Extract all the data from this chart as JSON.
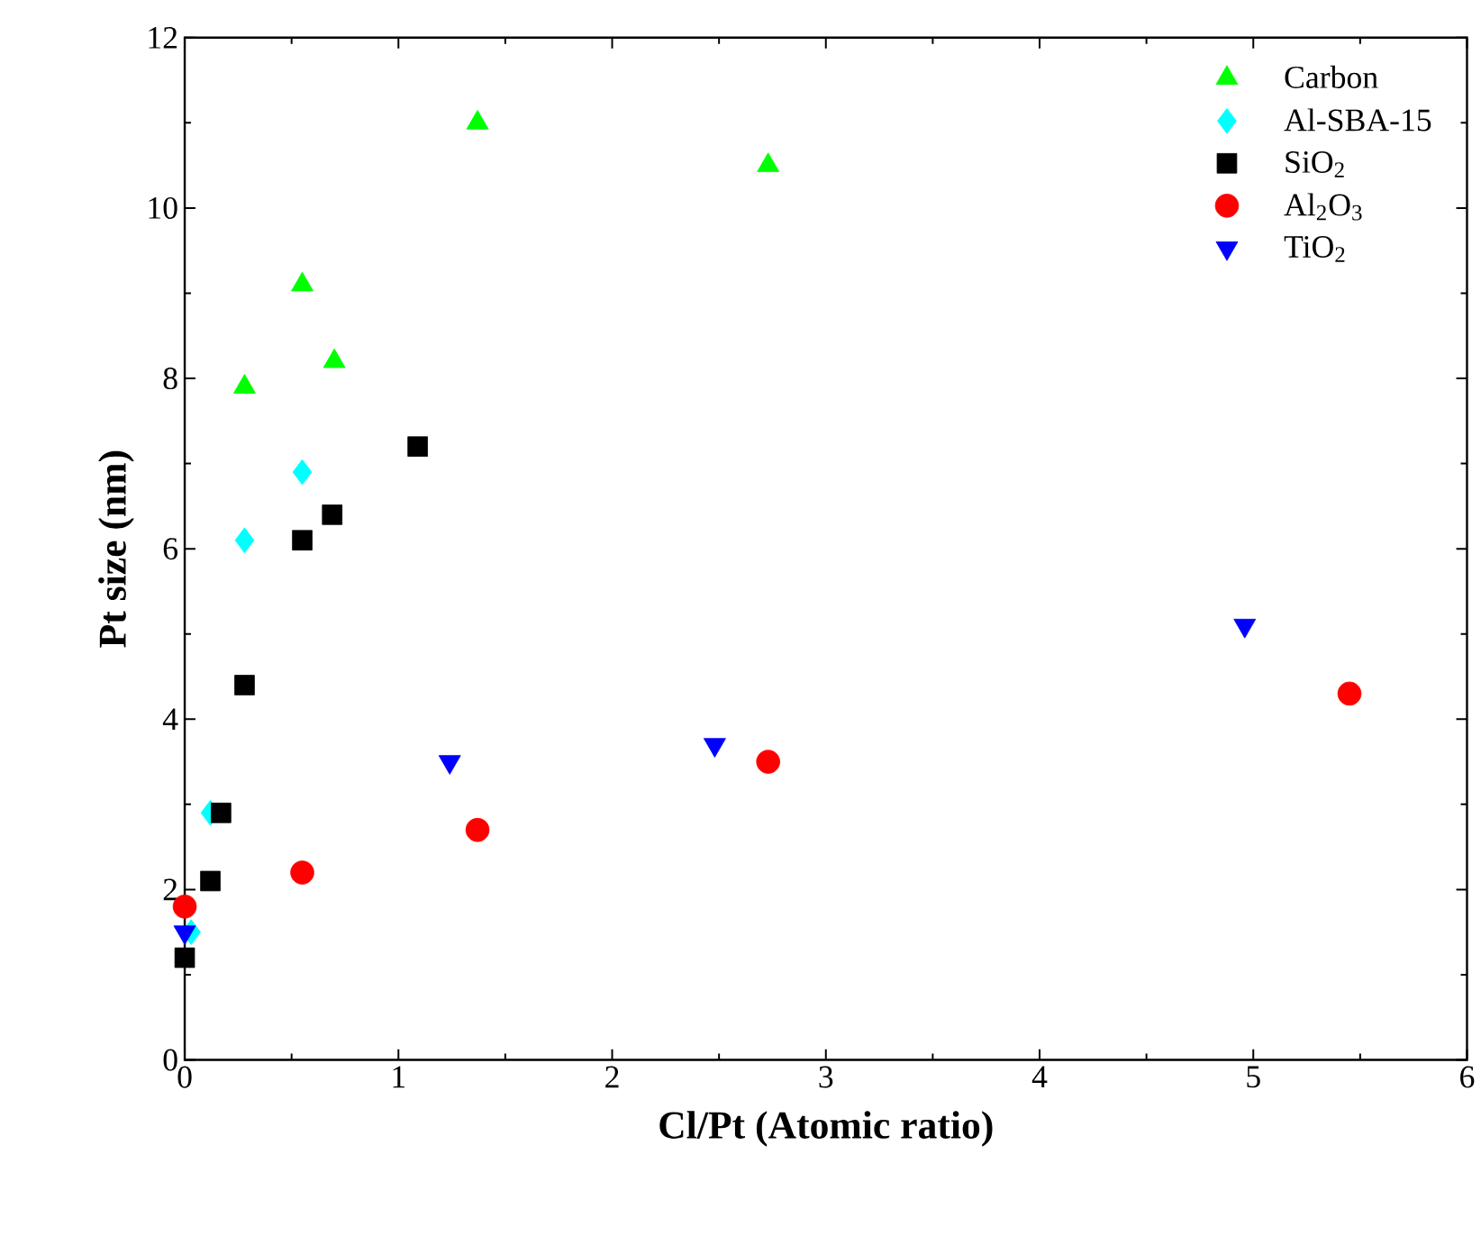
{
  "chart_data": {
    "type": "scatter",
    "xlabel": "Cl/Pt (Atomic ratio)",
    "ylabel": "Pt size (nm)",
    "xlim": [
      0,
      6
    ],
    "ylim": [
      0,
      12
    ],
    "xticks": [
      0,
      1,
      2,
      3,
      4,
      5,
      6
    ],
    "yticks": [
      0,
      2,
      4,
      6,
      8,
      10,
      12
    ],
    "grid": false,
    "legend": "top right",
    "series": [
      {
        "name": "Carbon",
        "color": "#00ff00",
        "marker": "triangle",
        "x": [
          0.28,
          0.55,
          0.7,
          1.37,
          2.73
        ],
        "values": [
          7.9,
          9.1,
          8.2,
          11.0,
          10.5
        ]
      },
      {
        "name": "Al-SBA-15",
        "color": "#00ffff",
        "marker": "diamond",
        "x": [
          0.03,
          0.12,
          0.28,
          0.55
        ],
        "values": [
          1.5,
          2.9,
          6.1,
          6.9
        ]
      },
      {
        "name": "SiO$_{2}$",
        "color": "#000000",
        "marker": "square",
        "x": [
          0,
          0.12,
          0.17,
          0.28,
          0.55,
          0.69,
          1.09
        ],
        "values": [
          1.2,
          2.1,
          2.9,
          4.4,
          6.1,
          6.4,
          7.2
        ]
      },
      {
        "name": "Al$_{2}$O$_{3}$",
        "color": "#ff0000",
        "marker": "circle",
        "x": [
          0,
          0.55,
          1.37,
          2.73,
          5.45
        ],
        "values": [
          1.8,
          2.2,
          2.7,
          3.5,
          4.3
        ]
      },
      {
        "name": "TiO$_{2}$",
        "color": "#0000ff",
        "marker": "triangle-down",
        "x": [
          0,
          1.24,
          2.48,
          4.96
        ],
        "values": [
          1.5,
          3.5,
          3.7,
          5.1
        ]
      }
    ]
  }
}
